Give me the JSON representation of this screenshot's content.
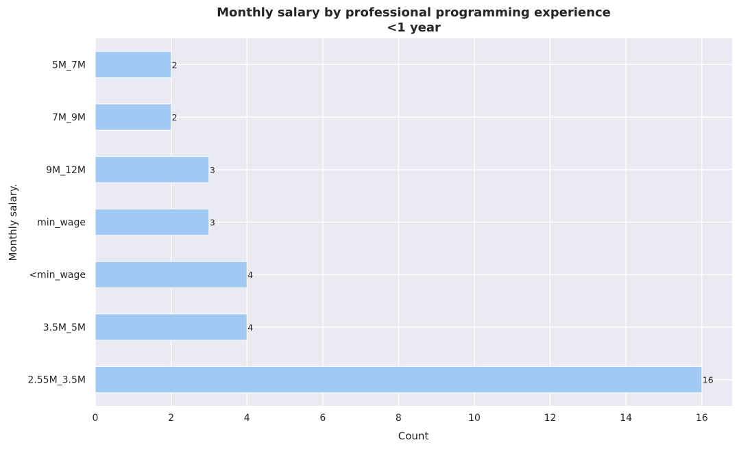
{
  "chart_data": {
    "type": "bar",
    "orientation": "horizontal",
    "title": "Monthly salary by professional programming experience",
    "subtitle": "<1 year",
    "xlabel": "Count",
    "ylabel": "Monthly salary.",
    "categories": [
      "5M_7M",
      "7M_9M",
      "9M_12M",
      "min_wage",
      "<min_wage",
      "3.5M_5M",
      "2.55M_3.5M"
    ],
    "values": [
      2,
      2,
      3,
      3,
      4,
      4,
      16
    ],
    "data_labels": [
      "2",
      "2",
      "3",
      "3",
      "4",
      "4",
      "16"
    ],
    "xticks": [
      "0",
      "2",
      "4",
      "6",
      "8",
      "10",
      "12",
      "14",
      "16"
    ],
    "xlim": [
      0,
      16.8
    ],
    "grid": true,
    "colors": {
      "bar": "#a1c9f4",
      "background": "#eaeaf2",
      "grid": "#ffffff"
    }
  }
}
